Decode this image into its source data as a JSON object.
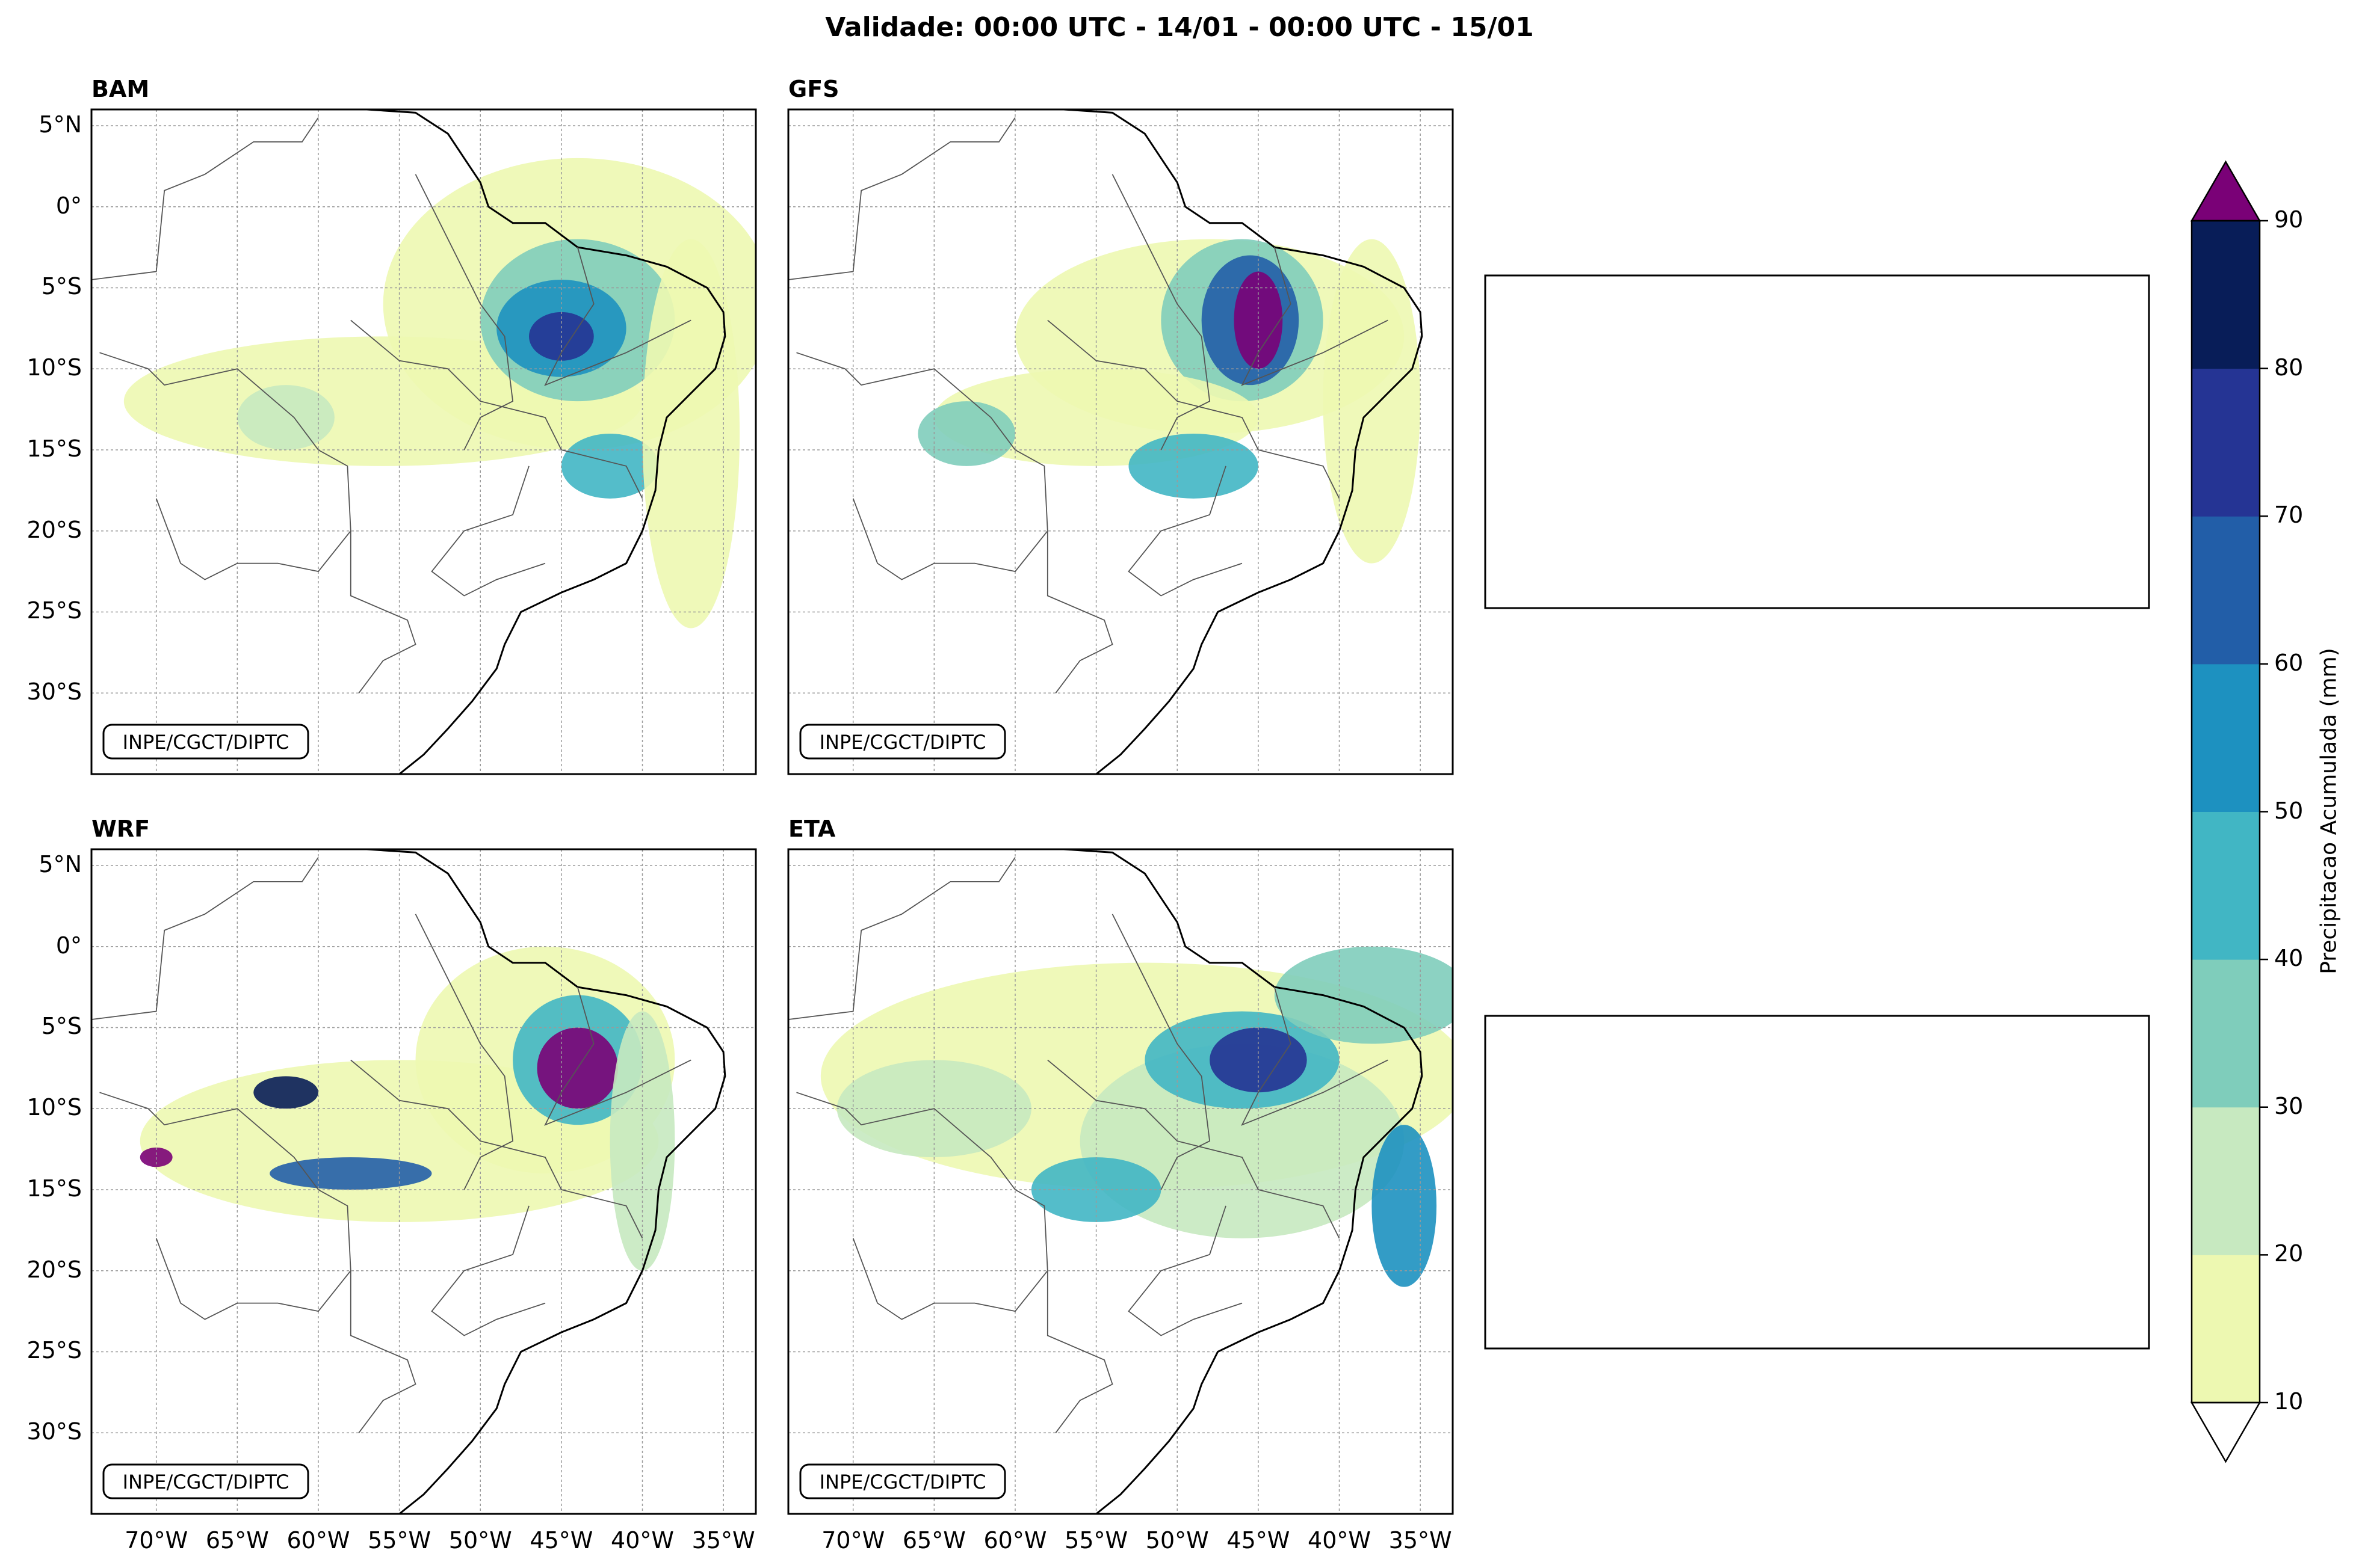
{
  "figure": {
    "title": "Validade: 00:00 UTC - 14/01 - 00:00 UTC - 15/01"
  },
  "panels": [
    {
      "name": "BAM",
      "credit": "INPE/CGCT/DIPTC",
      "col": 0,
      "row": 0
    },
    {
      "name": "GFS",
      "credit": "INPE/CGCT/DIPTC",
      "col": 1,
      "row": 0
    },
    {
      "name": "WRF",
      "credit": "INPE/CGCT/DIPTC",
      "col": 0,
      "row": 1
    },
    {
      "name": "ETA",
      "credit": "INPE/CGCT/DIPTC",
      "col": 1,
      "row": 1
    }
  ],
  "axes": {
    "lat_ticks": [
      "5°N",
      "0°",
      "5°S",
      "10°S",
      "15°S",
      "20°S",
      "25°S",
      "30°S"
    ],
    "lon_ticks": [
      "70°W",
      "65°W",
      "60°W",
      "55°W",
      "50°W",
      "45°W",
      "40°W",
      "35°W"
    ],
    "lat_values": [
      5,
      0,
      -5,
      -10,
      -15,
      -20,
      -25,
      -30
    ],
    "lon_values": [
      -70,
      -65,
      -60,
      -55,
      -50,
      -45,
      -40,
      -35
    ],
    "lat_range": [
      -35,
      6
    ],
    "lon_range": [
      -74,
      -33
    ]
  },
  "colorbar": {
    "label": "Precipitacao Acumulada (mm)",
    "ticks": [
      "10",
      "20",
      "30",
      "40",
      "50",
      "60",
      "70",
      "80",
      "90"
    ],
    "colors": [
      "#edf8b1",
      "#c7e9c0",
      "#7fcdbb",
      "#41b6c4",
      "#1d91c0",
      "#225ea8",
      "#253494",
      "#081d58"
    ],
    "over_color": "#7a0177",
    "under_color": "#ffffff"
  },
  "placeholder_boxes": 2
}
